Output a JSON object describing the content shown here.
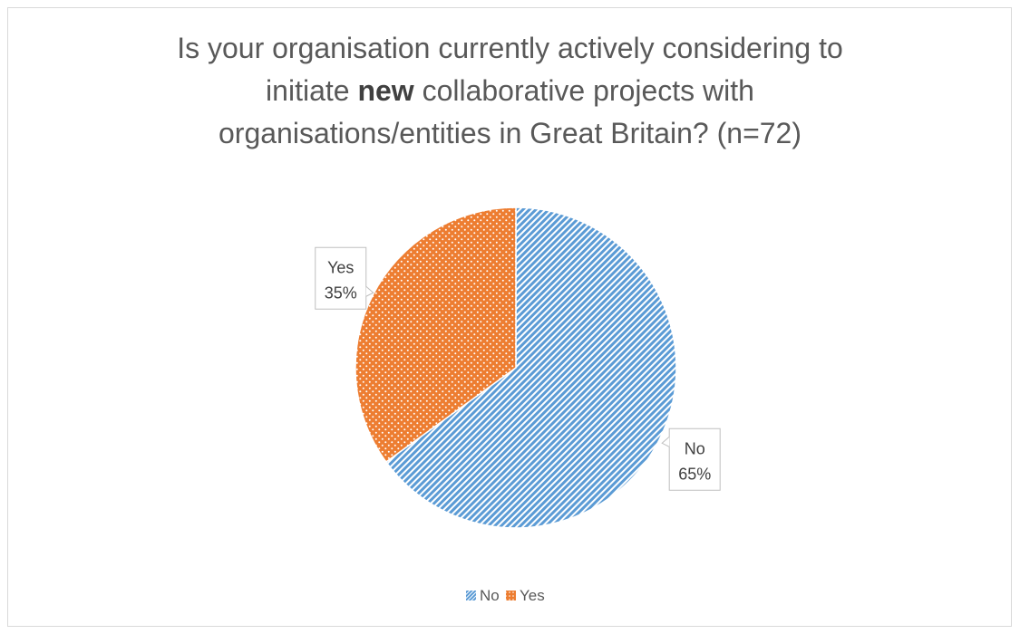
{
  "chart_data": {
    "type": "pie",
    "title": {
      "line1": "Is your organisation currently actively considering to",
      "line2_pre": "initiate ",
      "line2_bold": "new",
      "line2_post": " collaborative projects with",
      "line3": "organisations/entities in Great Britain? (n=72)"
    },
    "slices": [
      {
        "label": "No",
        "value": 65,
        "value_label": "65%",
        "color": "#5b9bd5",
        "pattern": "diagonal-stripes"
      },
      {
        "label": "Yes",
        "value": 35,
        "value_label": "35%",
        "color": "#ed7d31",
        "pattern": "dots"
      }
    ],
    "legend": {
      "position": "bottom",
      "items": [
        "No",
        "Yes"
      ]
    }
  }
}
